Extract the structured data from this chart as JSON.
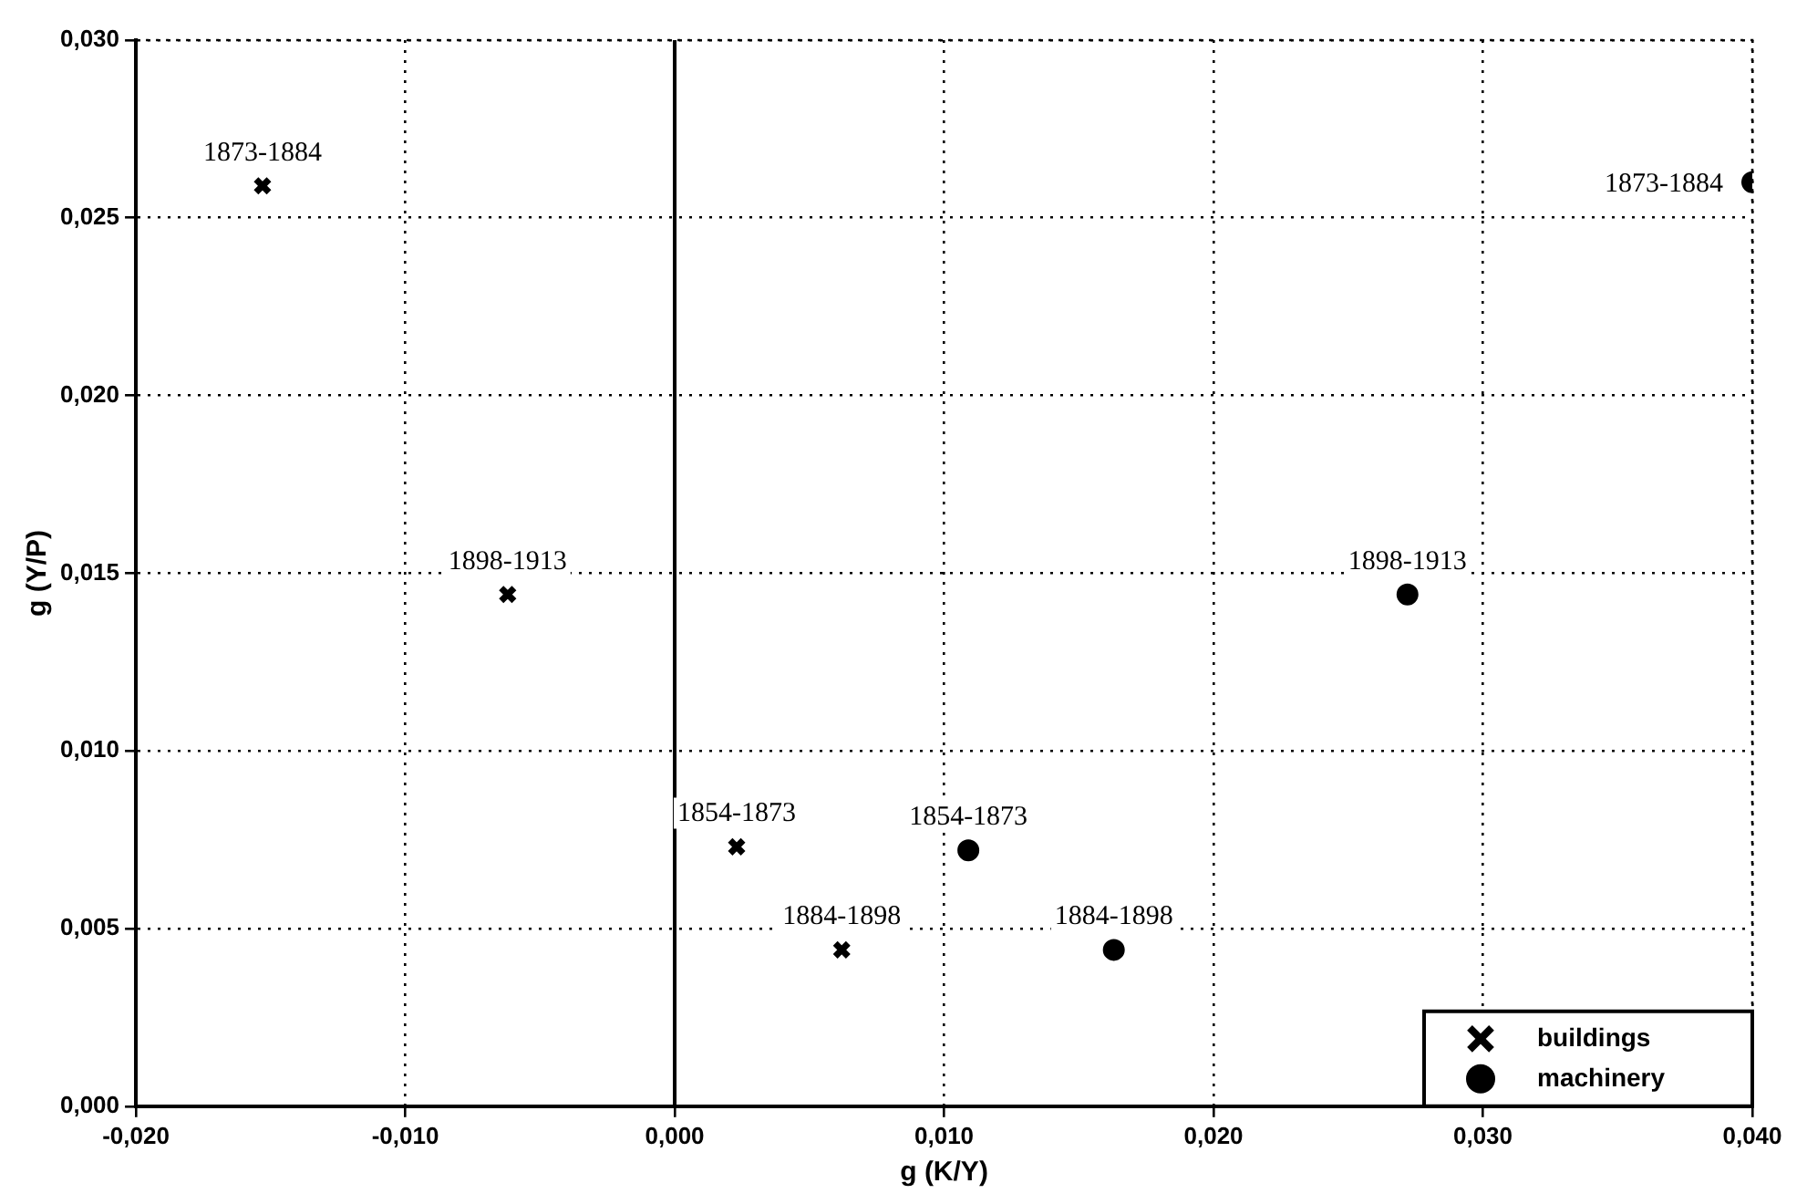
{
  "chart_data": {
    "type": "scatter",
    "xlabel": "g (K/Y)",
    "ylabel": "g (Y/P)",
    "xlim": [
      -0.02,
      0.04
    ],
    "xticks": [
      {
        "value": -0.02,
        "label": "-0,020"
      },
      {
        "value": -0.01,
        "label": "-0,010"
      },
      {
        "value": 0,
        "label": "0,000"
      },
      {
        "value": 0.01,
        "label": "0,010"
      },
      {
        "value": 0.02,
        "label": "0,020"
      },
      {
        "value": 0.03,
        "label": "0,030"
      },
      {
        "value": 0.04,
        "label": "0,040"
      }
    ],
    "ylim": [
      0,
      0.03
    ],
    "yticks": [
      {
        "value": 0,
        "label": "0,000"
      },
      {
        "value": 0.005,
        "label": "0,005"
      },
      {
        "value": 0.01,
        "label": "0,010"
      },
      {
        "value": 0.015,
        "label": "0,015"
      },
      {
        "value": 0.02,
        "label": "0,020"
      },
      {
        "value": 0.025,
        "label": "0,025"
      },
      {
        "value": 0.03,
        "label": "0,030"
      }
    ],
    "grid": true,
    "legend": "bottom right",
    "ref_lines": [
      {
        "axis": "x",
        "value": 0,
        "color": "#000000",
        "line_style": "solid"
      }
    ],
    "series": [
      {
        "name": "buildings",
        "color": "#000000",
        "marker": "cross",
        "x": [
          -0.0153,
          -0.0062,
          0.0023,
          0.0062
        ],
        "values": [
          0.0259,
          0.0144,
          0.0073,
          0.0044
        ]
      },
      {
        "name": "machinery",
        "color": "#000000",
        "marker": "circle",
        "x": [
          0.04,
          0.0272,
          0.0109,
          0.0163
        ],
        "values": [
          0.026,
          0.0144,
          0.0072,
          0.0044
        ]
      }
    ],
    "annotations": [
      {
        "text": "1873-1884",
        "x": -0.0153,
        "y": 0.0259
      },
      {
        "text": "1898-1913",
        "x": -0.0062,
        "y": 0.0144
      },
      {
        "text": "1854-1873",
        "x": 0.0023,
        "y": 0.0073
      },
      {
        "text": "1884-1898",
        "x": 0.0062,
        "y": 0.0044
      },
      {
        "text": "1873-1884",
        "x": 0.04,
        "y": 0.026
      },
      {
        "text": "1898-1913",
        "x": 0.0272,
        "y": 0.0144
      },
      {
        "text": "1854-1873",
        "x": 0.0109,
        "y": 0.0072
      },
      {
        "text": "1884-1898",
        "x": 0.0163,
        "y": 0.0044
      }
    ]
  }
}
